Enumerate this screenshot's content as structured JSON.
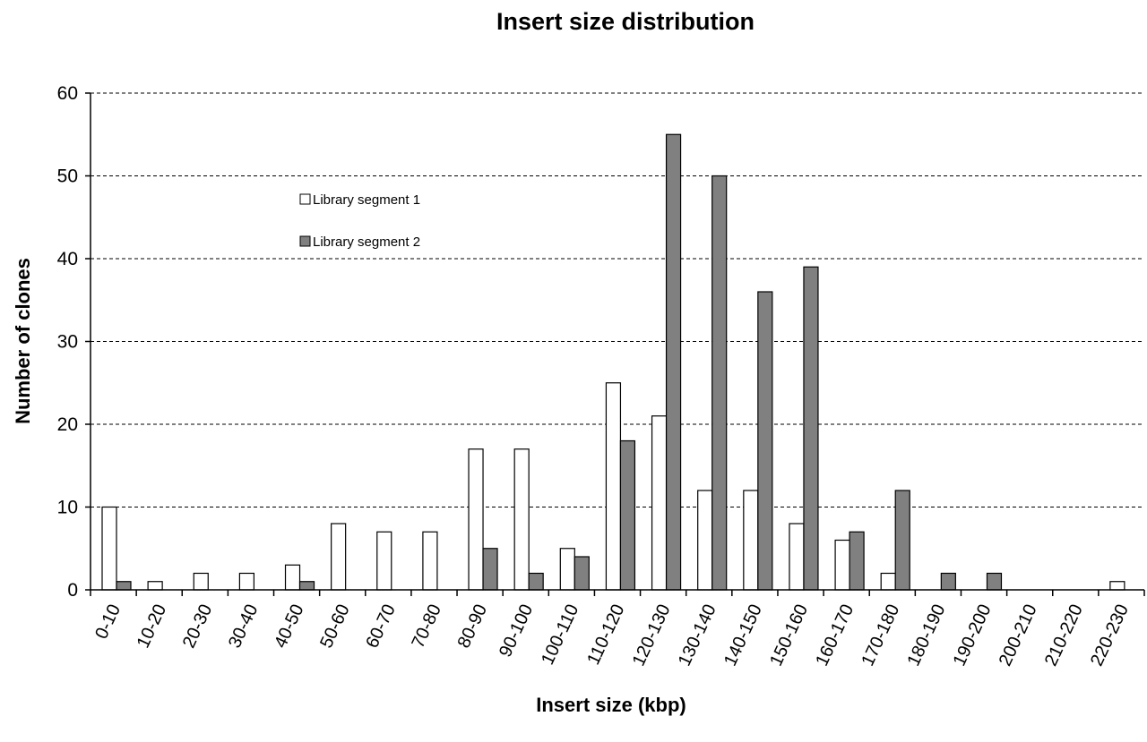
{
  "chart_data": {
    "type": "bar",
    "title": "Insert size distribution",
    "xlabel": "Insert size (kbp)",
    "ylabel": "Number of clones",
    "ylim": [
      0,
      60
    ],
    "yticks": [
      "0",
      "10",
      "20",
      "30",
      "40",
      "50",
      "60"
    ],
    "grid": "horizontal dashed",
    "legend_position": "upper-left inside plot",
    "categories": [
      "0-10",
      "10-20",
      "20-30",
      "30-40",
      "40-50",
      "50-60",
      "60-70",
      "70-80",
      "80-90",
      "90-100",
      "100-110",
      "110-120",
      "120-130",
      "130-140",
      "140-150",
      "150-160",
      "160-170",
      "170-180",
      "180-190",
      "190-200",
      "200-210",
      "210-220",
      "220-230"
    ],
    "series": [
      {
        "name": "Library segment 1",
        "color": "#ffffff",
        "values": [
          10,
          1,
          2,
          2,
          3,
          8,
          7,
          7,
          17,
          17,
          5,
          25,
          21,
          12,
          12,
          8,
          6,
          2,
          0,
          0,
          0,
          0,
          1
        ]
      },
      {
        "name": "Library segment 2",
        "color": "#808080",
        "values": [
          1,
          0,
          0,
          0,
          1,
          0,
          0,
          0,
          5,
          2,
          4,
          18,
          55,
          50,
          36,
          39,
          7,
          12,
          2,
          2,
          0,
          0,
          0
        ]
      }
    ]
  }
}
